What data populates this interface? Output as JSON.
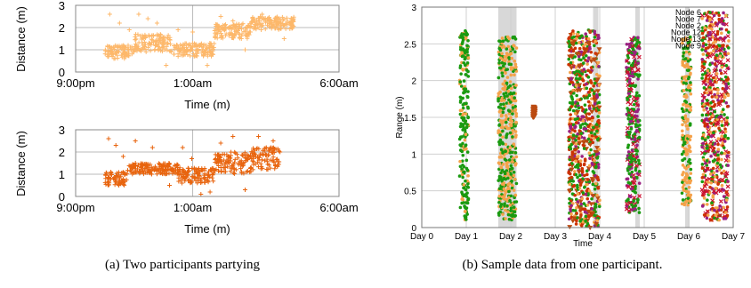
{
  "captions": {
    "a": "(a) Two participants partying",
    "b": "(b) Sample data from one participant."
  },
  "chart_data": [
    {
      "type": "scatter",
      "xlabel": "Time (m)",
      "ylabel": "Distance (m)",
      "ylim": [
        0,
        3
      ],
      "yticks": [
        "0",
        "1",
        "2",
        "3"
      ],
      "xticks": [
        "9:00pm",
        "1:00am",
        "6:00am"
      ],
      "marker": "+",
      "color": "#fdb86b",
      "grid": true,
      "segments": [
        {
          "from": "10:00pm",
          "to": "11:00pm",
          "low": 0.6,
          "high": 1.2,
          "spikes": [
            2.6,
            2.2,
            1.9
          ]
        },
        {
          "from": "11:00pm",
          "to": "12:15am",
          "low": 0.9,
          "high": 1.7,
          "spikes": [
            2.6,
            2.4,
            2.2,
            0.3
          ]
        },
        {
          "from": "12:15am",
          "to": "1:45am",
          "low": 0.7,
          "high": 1.3,
          "spikes": [
            1.9,
            1.8,
            0.3
          ]
        },
        {
          "from": "1:45am",
          "to": "3:00am",
          "low": 1.5,
          "high": 2.2,
          "spikes": [
            2.5,
            2.3,
            1.0
          ]
        },
        {
          "from": "3:00am",
          "to": "4:30am",
          "low": 1.9,
          "high": 2.5,
          "spikes": [
            2.6,
            1.5
          ]
        }
      ]
    },
    {
      "type": "scatter",
      "xlabel": "Time (m)",
      "ylabel": "Distance (m)",
      "ylim": [
        0,
        3
      ],
      "yticks": [
        "0",
        "1",
        "2",
        "3"
      ],
      "xticks": [
        "9:00pm",
        "1:00am",
        "6:00am"
      ],
      "marker": "+",
      "color": "#e8640e",
      "grid": true,
      "segments": [
        {
          "from": "10:00pm",
          "to": "10:45pm",
          "low": 0.5,
          "high": 1.1,
          "spikes": [
            2.6,
            2.3,
            1.8
          ]
        },
        {
          "from": "10:45pm",
          "to": "12:30am",
          "low": 1.0,
          "high": 1.5,
          "spikes": [
            2.5,
            2.2,
            0.5
          ]
        },
        {
          "from": "12:30am",
          "to": "1:45am",
          "low": 0.6,
          "high": 1.3,
          "spikes": [
            2.2,
            1.7,
            0.1,
            0.2
          ]
        },
        {
          "from": "1:45am",
          "to": "3:00am",
          "low": 1.0,
          "high": 2.0,
          "spikes": [
            2.4,
            2.7,
            0.3
          ]
        },
        {
          "from": "3:00am",
          "to": "4:00am",
          "low": 1.2,
          "high": 2.2,
          "spikes": [
            2.7,
            2.5
          ]
        }
      ]
    },
    {
      "type": "scatter",
      "xlabel": "Time",
      "ylabel": "Range (m)",
      "xlim": [
        0,
        7
      ],
      "ylim": [
        0,
        3
      ],
      "xticks": [
        "Day 0",
        "Day 1",
        "Day 2",
        "Day 3",
        "Day 4",
        "Day 5",
        "Day 6",
        "Day 7"
      ],
      "yticks": [
        "0",
        "0.5",
        "1",
        "1.5",
        "2",
        "2.5",
        "3"
      ],
      "grid": true,
      "shaded_intervals": [
        [
          1.72,
          2.13
        ],
        [
          3.85,
          3.97
        ],
        [
          4.8,
          4.9
        ],
        [
          5.92,
          6.02
        ]
      ],
      "legend_position": "top-right",
      "legend": [
        {
          "name": "Node 6",
          "color": "#1a9a10",
          "marker": "dot"
        },
        {
          "name": "Node 7",
          "color": "#f5a24a",
          "marker": "dot"
        },
        {
          "name": "Node 2",
          "color": "#cc3300",
          "marker": "dot"
        },
        {
          "name": "Node 12",
          "color": "#9a2080",
          "marker": "dot"
        },
        {
          "name": "Node 13",
          "color": "#cc1030",
          "marker": "x"
        },
        {
          "name": "Node 9",
          "color": "#bb4a10",
          "marker": "triangle"
        }
      ],
      "clusters": [
        {
          "x0": 0.85,
          "x1": 1.05,
          "low": 0.1,
          "high": 2.7,
          "colors": [
            "#1a9a10",
            "#1a9a10",
            "#1a9a10",
            "#f5a24a"
          ]
        },
        {
          "x0": 1.72,
          "x1": 2.13,
          "low": 0.1,
          "high": 2.6,
          "colors": [
            "#1a9a10",
            "#1a9a10",
            "#f5a24a",
            "#f5a24a"
          ]
        },
        {
          "x0": 2.5,
          "x1": 2.55,
          "low": 1.5,
          "high": 1.65,
          "colors": [
            "#bb4a10"
          ]
        },
        {
          "x0": 3.3,
          "x1": 4.0,
          "low": 0.0,
          "high": 2.7,
          "colors": [
            "#1a9a10",
            "#1a9a10",
            "#cc3300",
            "#cc3300",
            "#bb4a10",
            "#9a2080",
            "#f5a24a"
          ]
        },
        {
          "x0": 4.6,
          "x1": 4.9,
          "low": 0.2,
          "high": 2.6,
          "colors": [
            "#1a9a10",
            "#1a9a10",
            "#9a2080",
            "#cc1030"
          ]
        },
        {
          "x0": 5.85,
          "x1": 6.05,
          "low": 0.3,
          "high": 2.6,
          "colors": [
            "#f5a24a",
            "#f5a24a",
            "#1a9a10"
          ]
        },
        {
          "x0": 6.3,
          "x1": 6.9,
          "low": 0.1,
          "high": 2.95,
          "colors": [
            "#1a9a10",
            "#cc1030",
            "#9a2080",
            "#cc3300",
            "#f5a24a"
          ]
        }
      ]
    }
  ]
}
